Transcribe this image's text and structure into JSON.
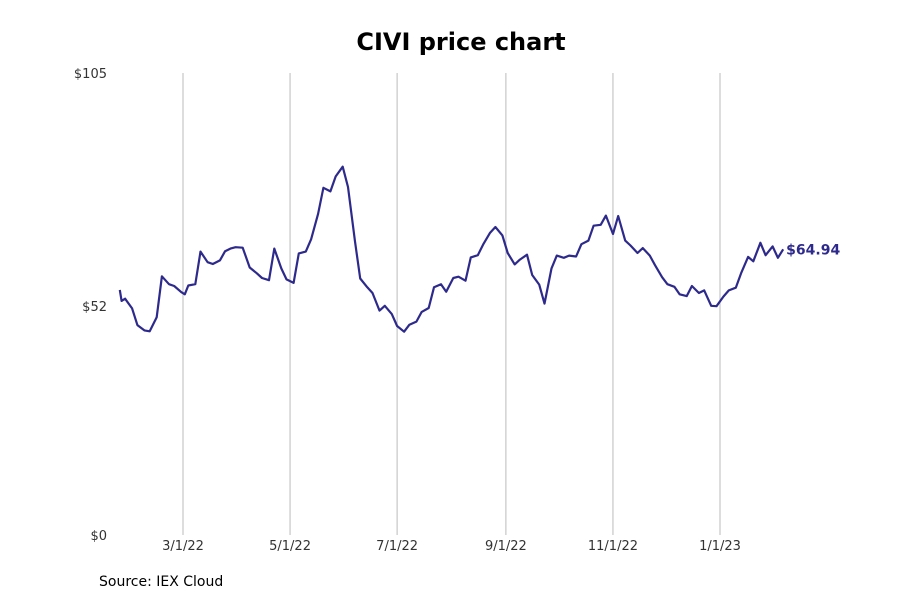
{
  "chart_data": {
    "type": "line",
    "title": "CIVI price chart",
    "source": "Source: IEX Cloud",
    "xlabel": "",
    "ylabel": "",
    "ylim": [
      0,
      105
    ],
    "xlim": [
      "2022-01-14",
      "2023-03-07"
    ],
    "grid": {
      "x": true,
      "y": false
    },
    "y_ticks": [
      {
        "value": 0,
        "label": "$0"
      },
      {
        "value": 52,
        "label": "$52"
      },
      {
        "value": 105,
        "label": "$105"
      }
    ],
    "x_ticks": [
      {
        "date": "2022-03-01",
        "label": "3/1/22"
      },
      {
        "date": "2022-05-01",
        "label": "5/1/22"
      },
      {
        "date": "2022-07-01",
        "label": "7/1/22"
      },
      {
        "date": "2022-09-01",
        "label": "9/1/22"
      },
      {
        "date": "2022-11-01",
        "label": "11/1/22"
      },
      {
        "date": "2023-01-01",
        "label": "1/1/23"
      }
    ],
    "colors": {
      "line": "#2e2a8c",
      "grid": "#bbbbbb"
    },
    "last_value_label": "$64.94",
    "series": [
      {
        "x": [
          "2022-01-24",
          "2022-01-25",
          "2022-01-27",
          "2022-01-31",
          "2022-02-03",
          "2022-02-07",
          "2022-02-10",
          "2022-02-14",
          "2022-02-17",
          "2022-02-21",
          "2022-02-24",
          "2022-02-28",
          "2022-03-02",
          "2022-03-04",
          "2022-03-08",
          "2022-03-11",
          "2022-03-15",
          "2022-03-18",
          "2022-03-22",
          "2022-03-25",
          "2022-03-28",
          "2022-03-31",
          "2022-04-04",
          "2022-04-08",
          "2022-04-12",
          "2022-04-15",
          "2022-04-19",
          "2022-04-22",
          "2022-04-26",
          "2022-04-29",
          "2022-05-03",
          "2022-05-06",
          "2022-05-10",
          "2022-05-13",
          "2022-05-17",
          "2022-05-20",
          "2022-05-24",
          "2022-05-27",
          "2022-05-31",
          "2022-06-03",
          "2022-06-07",
          "2022-06-10",
          "2022-06-14",
          "2022-06-17",
          "2022-06-21",
          "2022-06-24",
          "2022-06-28",
          "2022-07-01",
          "2022-07-05",
          "2022-07-08",
          "2022-07-12",
          "2022-07-15",
          "2022-07-19",
          "2022-07-22",
          "2022-07-26",
          "2022-07-29",
          "2022-08-02",
          "2022-08-05",
          "2022-08-09",
          "2022-08-12",
          "2022-08-16",
          "2022-08-19",
          "2022-08-23",
          "2022-08-26",
          "2022-08-30",
          "2022-09-02",
          "2022-09-06",
          "2022-09-09",
          "2022-09-13",
          "2022-09-16",
          "2022-09-20",
          "2022-09-23",
          "2022-09-27",
          "2022-09-30",
          "2022-10-04",
          "2022-10-07",
          "2022-10-11",
          "2022-10-14",
          "2022-10-18",
          "2022-10-21",
          "2022-10-25",
          "2022-10-28",
          "2022-11-01",
          "2022-11-04",
          "2022-11-08",
          "2022-11-11",
          "2022-11-15",
          "2022-11-18",
          "2022-11-22",
          "2022-11-25",
          "2022-11-29",
          "2022-12-02",
          "2022-12-06",
          "2022-12-09",
          "2022-12-13",
          "2022-12-16",
          "2022-12-20",
          "2022-12-23",
          "2022-12-27",
          "2022-12-30",
          "2023-01-03",
          "2023-01-06",
          "2023-01-10",
          "2023-01-13",
          "2023-01-17",
          "2023-01-20",
          "2023-01-24",
          "2023-01-27",
          "2023-01-31",
          "2023-02-03",
          "2023-02-06"
        ],
        "y": [
          55.7,
          53.2,
          53.7,
          51.5,
          47.7,
          46.5,
          46.3,
          49.5,
          58.8,
          57.0,
          56.6,
          55.2,
          54.7,
          56.7,
          57.0,
          64.4,
          62.0,
          61.6,
          62.4,
          64.5,
          65.1,
          65.4,
          65.3,
          60.8,
          59.5,
          58.4,
          57.9,
          65.1,
          60.6,
          58.1,
          57.3,
          64.0,
          64.4,
          67.2,
          73.0,
          78.9,
          78.1,
          81.5,
          83.7,
          79.1,
          66.7,
          58.3,
          56.3,
          55.0,
          51.0,
          52.1,
          50.2,
          47.5,
          46.2,
          47.8,
          48.5,
          50.7,
          51.6,
          56.3,
          57.0,
          55.3,
          58.4,
          58.7,
          57.8,
          63.1,
          63.6,
          66.0,
          68.7,
          70.0,
          68.1,
          64.1,
          61.5,
          62.6,
          63.7,
          59.1,
          56.9,
          52.6,
          60.6,
          63.5,
          63.0,
          63.5,
          63.3,
          66.1,
          66.9,
          70.3,
          70.5,
          72.6,
          68.4,
          72.5,
          66.9,
          65.8,
          64.1,
          65.2,
          63.5,
          61.3,
          58.6,
          57.0,
          56.4,
          54.7,
          54.3,
          56.6,
          55.0,
          55.6,
          52.1,
          52.0,
          54.2,
          55.6,
          56.2,
          59.5,
          63.2,
          62.2,
          66.4,
          63.6,
          65.6,
          63.0,
          64.94
        ]
      }
    ]
  }
}
